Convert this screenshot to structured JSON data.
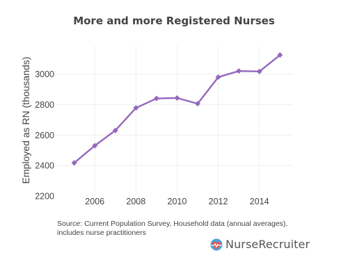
{
  "chart_data": {
    "type": "line",
    "title": "More and more Registered Nurses",
    "xlabel": "",
    "ylabel": "Employed as RN (thousands)",
    "x": [
      2005,
      2006,
      2007,
      2008,
      2009,
      2010,
      2011,
      2012,
      2013,
      2014,
      2015
    ],
    "series": [
      {
        "values": [
          2417,
          2530,
          2630,
          2778,
          2840,
          2843,
          2806,
          2980,
          3020,
          3017,
          3125
        ]
      }
    ],
    "xlim": [
      2004.1,
      2015.6
    ],
    "ylim": [
      2200,
      3185
    ],
    "xticks": [
      "2006",
      "2008",
      "2010",
      "2012",
      "2014"
    ],
    "yticks": [
      "2200",
      "2400",
      "2600",
      "2800",
      "3000"
    ],
    "grid": true,
    "line_color": "#9467bd"
  },
  "footer": {
    "source_line1": "Source: Current Population Survey, Household data (annual averages),",
    "source_line2": "includes nurse practitioners"
  },
  "logo": {
    "text": "NurseRecruiter",
    "icon": "nurserecruiter-logo-icon"
  }
}
